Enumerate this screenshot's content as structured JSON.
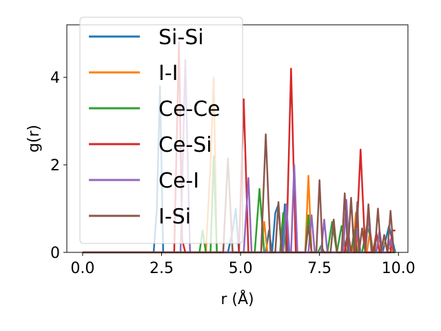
{
  "chart_data": {
    "type": "line",
    "xlabel": "r (Å)",
    "ylabel": "g(r)",
    "xlim": [
      -0.5,
      10.3
    ],
    "ylim": [
      0,
      5.2
    ],
    "xticks": [
      0.0,
      2.5,
      5.0,
      7.5,
      10.0
    ],
    "xtick_labels": [
      "0.0",
      "2.5",
      "5.0",
      "7.5",
      "10.0"
    ],
    "yticks": [
      0,
      2,
      4
    ],
    "ytick_labels": [
      "0",
      "2",
      "4"
    ],
    "grid": false,
    "legend_position": "top-left",
    "series": [
      {
        "name": "Si-Si",
        "color": "#1f77b4",
        "x": [
          0,
          2.25,
          2.35,
          2.45,
          2.55,
          4.6,
          4.75,
          4.85,
          4.95,
          5.8,
          5.9,
          6.0,
          6.1,
          6.2,
          6.3,
          6.4,
          6.5,
          6.6,
          9.5,
          9.6,
          9.7,
          9.9
        ],
        "y": [
          0,
          0,
          1.0,
          3.8,
          0,
          0,
          0.5,
          1.0,
          0,
          0,
          0.5,
          0,
          0.9,
          1.1,
          0,
          1.1,
          0,
          0,
          0,
          0.3,
          0.6,
          0
        ]
      },
      {
        "name": "I-I",
        "color": "#ff7f0e",
        "x": [
          0,
          3.9,
          4.05,
          4.15,
          4.25,
          5.65,
          5.75,
          5.85,
          7.05,
          7.15,
          7.25,
          8.55,
          8.65,
          8.75,
          9.0,
          9.1,
          9.2,
          9.3,
          9.9
        ],
        "y": [
          0,
          0,
          2.0,
          4.0,
          0,
          0,
          0.7,
          0,
          0,
          1.75,
          0,
          0,
          0.9,
          0,
          0,
          0.5,
          0,
          0.3,
          0
        ]
      },
      {
        "name": "Ce-Ce",
        "color": "#2ca02c",
        "x": [
          0,
          3.7,
          3.8,
          3.9,
          4.05,
          4.15,
          4.25,
          5.45,
          5.6,
          5.75,
          6.25,
          6.35,
          6.45,
          7.05,
          7.15,
          7.25,
          7.45,
          7.55,
          7.65,
          7.75,
          7.9,
          8.05,
          8.2,
          8.35,
          8.5,
          8.6,
          8.7,
          8.85,
          9.0,
          9.1,
          9.2,
          9.9
        ],
        "y": [
          0,
          0,
          0.5,
          0,
          0,
          2.2,
          0,
          0,
          1.45,
          0,
          0,
          0.9,
          0,
          0,
          0.85,
          0,
          0,
          0.15,
          0,
          0,
          0.7,
          0,
          0.6,
          0,
          0,
          0.5,
          0,
          0,
          0.6,
          0.4,
          0,
          0
        ]
      },
      {
        "name": "Ce-Si",
        "color": "#d62728",
        "x": [
          0,
          2.9,
          3.05,
          3.15,
          3.25,
          4.95,
          5.1,
          5.25,
          6.45,
          6.6,
          6.75,
          8.3,
          8.4,
          8.5,
          8.65,
          8.8,
          8.95,
          9.2,
          9.3,
          9.4,
          9.75,
          9.8,
          9.9
        ],
        "y": [
          0,
          0,
          4.8,
          0.3,
          0,
          0,
          3.5,
          0,
          0,
          4.2,
          0,
          0,
          0.5,
          0,
          0,
          2.35,
          0,
          0,
          0.45,
          0,
          0,
          0.5,
          0.5
        ]
      },
      {
        "name": "Ce-I",
        "color": "#9467bd",
        "x": [
          0,
          3.1,
          3.25,
          3.4,
          5.1,
          5.25,
          5.35,
          6.35,
          6.45,
          6.55,
          6.6,
          6.7,
          6.8,
          7.15,
          7.25,
          7.35,
          7.55,
          7.65,
          7.75,
          8.25,
          8.35,
          8.45,
          8.6,
          8.7,
          8.8,
          8.95,
          9.05,
          9.15,
          9.3,
          9.4,
          9.5,
          9.65,
          9.75,
          9.85
        ],
        "y": [
          0,
          0,
          4.4,
          0,
          0,
          1.7,
          0,
          0,
          1.1,
          0,
          0,
          2.0,
          0,
          0,
          0.85,
          0,
          0,
          0.75,
          0,
          0,
          1.2,
          0,
          0,
          0.55,
          0,
          0,
          0.85,
          0,
          0,
          0.5,
          0,
          0,
          0.3,
          0
        ]
      },
      {
        "name": "I-Si",
        "color": "#8c564b",
        "x": [
          0,
          4.45,
          4.6,
          4.75,
          5.65,
          5.8,
          5.95,
          6.1,
          6.2,
          6.3,
          7.05,
          7.15,
          7.25,
          7.4,
          7.5,
          7.6,
          7.85,
          7.95,
          8.05,
          8.2,
          8.3,
          8.4,
          8.5,
          8.6,
          8.7,
          8.75,
          8.85,
          8.95,
          9.05,
          9.15,
          9.25,
          9.35,
          9.45,
          9.55,
          9.65,
          9.75,
          9.85
        ],
        "y": [
          0,
          0,
          2.15,
          0,
          0,
          2.7,
          0,
          0,
          1.15,
          0,
          0,
          0.6,
          0,
          0,
          1.65,
          0,
          0,
          0.75,
          0,
          0,
          1.35,
          0,
          1.25,
          0,
          1.15,
          0,
          0.55,
          0,
          1.1,
          0,
          0,
          1.0,
          0,
          0.4,
          0,
          0.95,
          0
        ]
      }
    ]
  }
}
